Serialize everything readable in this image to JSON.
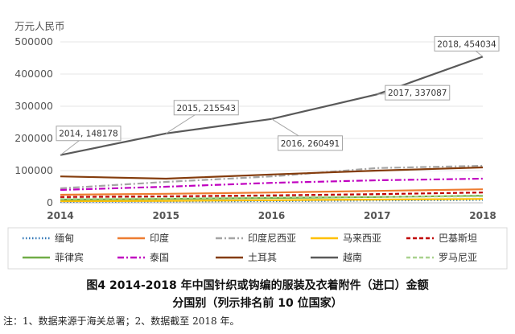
{
  "chart_data": {
    "type": "line",
    "ylabel": "万元人民币",
    "x": [
      "2014",
      "2015",
      "2016",
      "2017",
      "2018"
    ],
    "yticks": [
      "0",
      "100000",
      "200000",
      "300000",
      "400000",
      "500000"
    ],
    "ylim": [
      0,
      500000
    ],
    "grid": "horizontal",
    "legend_position": "bottom",
    "series": [
      {
        "name": "缅甸",
        "color": "#2e75b6",
        "dash": "dotted",
        "values": [
          3000,
          4000,
          5000,
          7000,
          9000
        ]
      },
      {
        "name": "印度",
        "color": "#ed7d31",
        "dash": "solid",
        "values": [
          25000,
          28000,
          32000,
          37000,
          42000
        ]
      },
      {
        "name": "印度尼西亚",
        "color": "#a5a5a5",
        "dash": "dashdot",
        "values": [
          45000,
          65000,
          82000,
          108000,
          115000
        ]
      },
      {
        "name": "马来西亚",
        "color": "#ffc000",
        "dash": "solid",
        "values": [
          5000,
          6000,
          8000,
          10000,
          12000
        ]
      },
      {
        "name": "巴基斯坦",
        "color": "#c00000",
        "dash": "dashed",
        "values": [
          18000,
          20000,
          23000,
          27000,
          32000
        ]
      },
      {
        "name": "菲律宾",
        "color": "#70ad47",
        "dash": "solid",
        "values": [
          10000,
          12000,
          15000,
          18000,
          22000
        ]
      },
      {
        "name": "泰国",
        "color": "#c000c0",
        "dash": "dashdot",
        "values": [
          40000,
          50000,
          62000,
          70000,
          75000
        ]
      },
      {
        "name": "土耳其",
        "color": "#843c0c",
        "dash": "solid",
        "values": [
          82000,
          75000,
          88000,
          100000,
          110000
        ]
      },
      {
        "name": "越南",
        "color": "#595959",
        "dash": "solid",
        "values": [
          148178,
          215543,
          260491,
          337087,
          454034
        ]
      },
      {
        "name": "罗马尼亚",
        "color": "#a9d18e",
        "dash": "dashed",
        "values": [
          12000,
          14000,
          17000,
          19000,
          20000
        ]
      }
    ],
    "callouts": [
      {
        "text": "2014, 148178",
        "series": "越南",
        "index": 0
      },
      {
        "text": "2015, 215543",
        "series": "越南",
        "index": 1
      },
      {
        "text": "2016, 260491",
        "series": "越南",
        "index": 2
      },
      {
        "text": "2017, 337087",
        "series": "越南",
        "index": 3
      },
      {
        "text": "2018, 454034",
        "series": "越南",
        "index": 4
      }
    ]
  },
  "caption": {
    "line1": "图4   2014-2018 年中国针织或钩编的服装及衣着附件（进口）金额",
    "line2": "分国别（列示排名前 10 位国家）"
  },
  "note": "注：1、数据来源于海关总署；2、数据截至 2018 年。"
}
